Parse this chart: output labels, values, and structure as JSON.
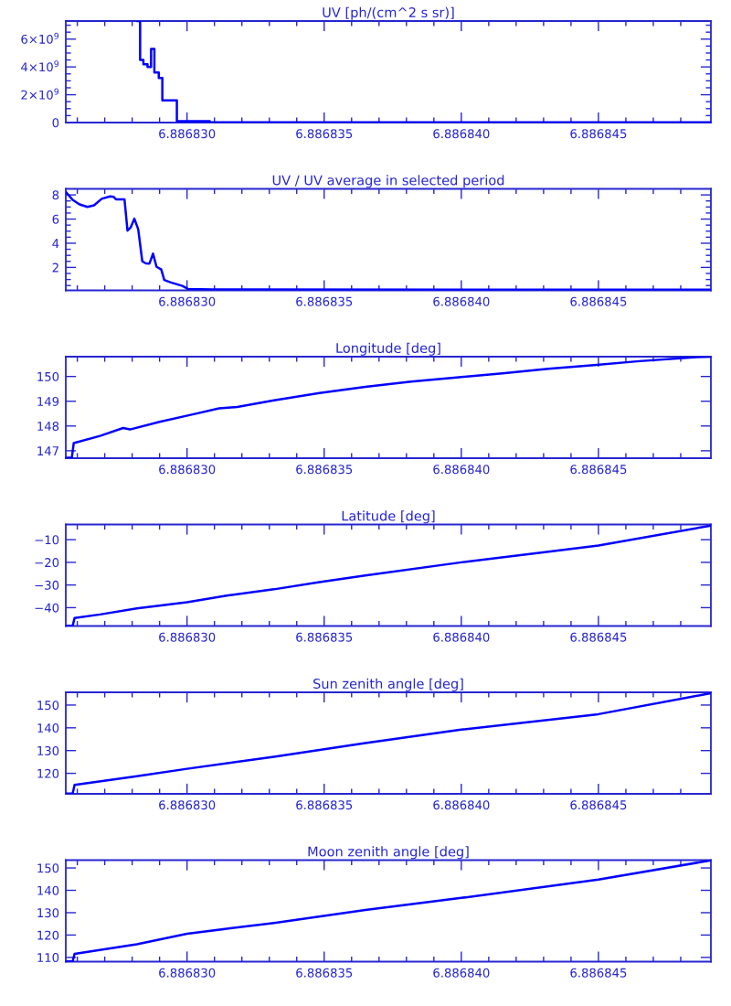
{
  "chart_data": [
    {
      "type": "step",
      "title": "UV [ph/(cm^2 s sr)]",
      "xlim": [
        6.88682558,
        6.8868491
      ],
      "ylim": [
        0,
        7300000000
      ],
      "xticks": [
        {
          "value": 6.886826,
          "label": null
        },
        {
          "value": 6.886827,
          "label": null
        },
        {
          "value": 6.886828,
          "label": null
        },
        {
          "value": 6.886829,
          "label": null
        },
        {
          "value": 6.88683,
          "label": "6.886830"
        },
        {
          "value": 6.886831,
          "label": null
        },
        {
          "value": 6.886832,
          "label": null
        },
        {
          "value": 6.886833,
          "label": null
        },
        {
          "value": 6.886834,
          "label": null
        },
        {
          "value": 6.886835,
          "label": "6.886835"
        },
        {
          "value": 6.886836,
          "label": null
        },
        {
          "value": 6.886837,
          "label": null
        },
        {
          "value": 6.886838,
          "label": null
        },
        {
          "value": 6.886839,
          "label": null
        },
        {
          "value": 6.88684,
          "label": "6.886840"
        },
        {
          "value": 6.886841,
          "label": null
        },
        {
          "value": 6.886842,
          "label": null
        },
        {
          "value": 6.886843,
          "label": null
        },
        {
          "value": 6.886844,
          "label": null
        },
        {
          "value": 6.886845,
          "label": "6.886845"
        },
        {
          "value": 6.886846,
          "label": null
        },
        {
          "value": 6.886847,
          "label": null
        },
        {
          "value": 6.886848,
          "label": null
        }
      ],
      "yticks": [
        0,
        {
          "value": 500000000,
          "label": null
        },
        {
          "value": 1000000000,
          "label": null
        },
        {
          "value": 1500000000,
          "label": null
        },
        {
          "value": 2000000000,
          "label": "2×10$^{9}$"
        },
        {
          "value": 2500000000,
          "label": null
        },
        {
          "value": 3000000000,
          "label": null
        },
        {
          "value": 3500000000,
          "label": null
        },
        {
          "value": 4000000000,
          "label": "4×10$^{9}$"
        },
        {
          "value": 4500000000,
          "label": null
        },
        {
          "value": 5000000000,
          "label": null
        },
        {
          "value": 5500000000,
          "label": null
        },
        {
          "value": 6000000000,
          "label": "6×10$^{9}$"
        },
        {
          "value": 6500000000,
          "label": null
        },
        {
          "value": 7000000000,
          "label": null
        }
      ],
      "series": [
        {
          "color": "#0000ff",
          "x": [
            6.8868282,
            6.88682829,
            6.88682841,
            6.88682856,
            6.88682869,
            6.88682881,
            6.88682897,
            6.8868291,
            6.88682963,
            6.88683083,
            6.8868491
          ],
          "values": [
            7300000000,
            4500000000,
            4200000000,
            4000000000,
            5300000000,
            3600000000,
            3200000000,
            1600000000,
            100000000,
            20000000,
            20000000
          ]
        }
      ]
    },
    {
      "type": "line",
      "title": "UV / UV average in selected period",
      "xlim": [
        6.88682558,
        6.8868491
      ],
      "ylim": [
        0.1,
        8.5
      ],
      "xticks": [
        {
          "value": 6.886826,
          "label": null
        },
        {
          "value": 6.886827,
          "label": null
        },
        {
          "value": 6.886828,
          "label": null
        },
        {
          "value": 6.886829,
          "label": null
        },
        {
          "value": 6.88683,
          "label": "6.886830"
        },
        {
          "value": 6.886831,
          "label": null
        },
        {
          "value": 6.886832,
          "label": null
        },
        {
          "value": 6.886833,
          "label": null
        },
        {
          "value": 6.886834,
          "label": null
        },
        {
          "value": 6.886835,
          "label": "6.886835"
        },
        {
          "value": 6.886836,
          "label": null
        },
        {
          "value": 6.886837,
          "label": null
        },
        {
          "value": 6.886838,
          "label": null
        },
        {
          "value": 6.886839,
          "label": null
        },
        {
          "value": 6.88684,
          "label": "6.886840"
        },
        {
          "value": 6.886841,
          "label": null
        },
        {
          "value": 6.886842,
          "label": null
        },
        {
          "value": 6.886843,
          "label": null
        },
        {
          "value": 6.886844,
          "label": null
        },
        {
          "value": 6.886845,
          "label": "6.886845"
        },
        {
          "value": 6.886846,
          "label": null
        },
        {
          "value": 6.886847,
          "label": null
        },
        {
          "value": 6.886848,
          "label": null
        }
      ],
      "yticks": [
        {
          "value": 0.5,
          "label": null
        },
        {
          "value": 1,
          "label": null
        },
        {
          "value": 1.5,
          "label": null
        },
        2,
        {
          "value": 2.5,
          "label": null
        },
        {
          "value": 3,
          "label": null
        },
        {
          "value": 3.5,
          "label": null
        },
        4,
        {
          "value": 4.5,
          "label": null
        },
        {
          "value": 5,
          "label": null
        },
        {
          "value": 5.5,
          "label": null
        },
        6,
        {
          "value": 6.5,
          "label": null
        },
        {
          "value": 7,
          "label": null
        },
        {
          "value": 7.5,
          "label": null
        },
        8
      ],
      "series": [
        {
          "color": "#0000ff",
          "x": [
            6.88682558,
            6.88682583,
            6.88682608,
            6.88682637,
            6.88682661,
            6.88682689,
            6.88682719,
            6.88682733,
            6.88682741,
            6.88682772,
            6.88682783,
            6.88682794,
            6.88682808,
            6.88682822,
            6.88682837,
            6.8868285,
            6.88682863,
            6.88682876,
            6.88682889,
            6.88682906,
            6.88682917,
            6.88682939,
            6.88682983,
            6.88683003,
            6.88683094,
            6.8868491
          ],
          "values": [
            8.25,
            7.59,
            7.21,
            7.01,
            7.14,
            7.68,
            7.88,
            7.83,
            7.63,
            7.63,
            5.04,
            5.29,
            6.03,
            5.16,
            2.5,
            2.33,
            2.32,
            3.14,
            2.05,
            1.83,
            0.96,
            0.77,
            0.47,
            0.22,
            0.17,
            0.15
          ]
        }
      ]
    },
    {
      "type": "line",
      "title": "Longitude [deg]",
      "xlim": [
        6.88682558,
        6.8868491
      ],
      "ylim": [
        146.7,
        150.8
      ],
      "xticks": [
        {
          "value": 6.886826,
          "label": null
        },
        {
          "value": 6.886827,
          "label": null
        },
        {
          "value": 6.886828,
          "label": null
        },
        {
          "value": 6.886829,
          "label": null
        },
        {
          "value": 6.88683,
          "label": "6.886830"
        },
        {
          "value": 6.886831,
          "label": null
        },
        {
          "value": 6.886832,
          "label": null
        },
        {
          "value": 6.886833,
          "label": null
        },
        {
          "value": 6.886834,
          "label": null
        },
        {
          "value": 6.886835,
          "label": "6.886835"
        },
        {
          "value": 6.886836,
          "label": null
        },
        {
          "value": 6.886837,
          "label": null
        },
        {
          "value": 6.886838,
          "label": null
        },
        {
          "value": 6.886839,
          "label": null
        },
        {
          "value": 6.88684,
          "label": "6.886840"
        },
        {
          "value": 6.886841,
          "label": null
        },
        {
          "value": 6.886842,
          "label": null
        },
        {
          "value": 6.886843,
          "label": null
        },
        {
          "value": 6.886844,
          "label": null
        },
        {
          "value": 6.886845,
          "label": "6.886845"
        },
        {
          "value": 6.886846,
          "label": null
        },
        {
          "value": 6.886847,
          "label": null
        },
        {
          "value": 6.886848,
          "label": null
        }
      ],
      "yticks": [
        147,
        148,
        149,
        150
      ],
      "series": [
        {
          "color": "#0000ff",
          "x": [
            6.88682558,
            6.8868258,
            6.88682587,
            6.88682683,
            6.88682767,
            6.88682792,
            6.886829,
            6.88683017,
            6.88683117,
            6.88683183,
            6.88683317,
            6.88683483,
            6.8868365,
            6.88683817,
            6.88683983,
            6.8868415,
            6.88684317,
            6.88684483,
            6.8868465,
            6.88684857,
            6.8868491
          ],
          "values": [
            146.72,
            146.72,
            147.31,
            147.6,
            147.92,
            147.86,
            148.17,
            148.46,
            148.71,
            148.77,
            149.04,
            149.33,
            149.58,
            149.79,
            149.96,
            150.13,
            150.31,
            150.46,
            150.62,
            150.78,
            150.8
          ]
        }
      ]
    },
    {
      "type": "line",
      "title": "Latitude [deg]",
      "xlim": [
        6.88682558,
        6.8868491
      ],
      "ylim": [
        -48.1,
        -3.3
      ],
      "xticks": [
        {
          "value": 6.886826,
          "label": null
        },
        {
          "value": 6.886827,
          "label": null
        },
        {
          "value": 6.886828,
          "label": null
        },
        {
          "value": 6.886829,
          "label": null
        },
        {
          "value": 6.88683,
          "label": "6.886830"
        },
        {
          "value": 6.886831,
          "label": null
        },
        {
          "value": 6.886832,
          "label": null
        },
        {
          "value": 6.886833,
          "label": null
        },
        {
          "value": 6.886834,
          "label": null
        },
        {
          "value": 6.886835,
          "label": "6.886835"
        },
        {
          "value": 6.886836,
          "label": null
        },
        {
          "value": 6.886837,
          "label": null
        },
        {
          "value": 6.886838,
          "label": null
        },
        {
          "value": 6.886839,
          "label": null
        },
        {
          "value": 6.88684,
          "label": "6.886840"
        },
        {
          "value": 6.886841,
          "label": null
        },
        {
          "value": 6.886842,
          "label": null
        },
        {
          "value": 6.886843,
          "label": null
        },
        {
          "value": 6.886844,
          "label": null
        },
        {
          "value": 6.886845,
          "label": "6.886845"
        },
        {
          "value": 6.886846,
          "label": null
        },
        {
          "value": 6.886847,
          "label": null
        },
        {
          "value": 6.886848,
          "label": null
        }
      ],
      "yticks": [
        {
          "value": -40,
          "label": "−40"
        },
        {
          "value": -30,
          "label": "−30"
        },
        {
          "value": -20,
          "label": "−20"
        },
        {
          "value": -10,
          "label": "−10"
        }
      ],
      "series": [
        {
          "color": "#0000ff",
          "x": [
            6.88682558,
            6.88682583,
            6.8868259,
            6.88682683,
            6.88682817,
            6.88683,
            6.8868315,
            6.88683317,
            6.88683483,
            6.8868365,
            6.88684,
            6.8868425,
            6.886845,
            6.8868491
          ],
          "values": [
            -48.0,
            -48.0,
            -44.6,
            -43.0,
            -40.3,
            -37.6,
            -34.6,
            -31.9,
            -28.7,
            -25.8,
            -20.0,
            -16.3,
            -12.6,
            -3.8
          ]
        }
      ]
    },
    {
      "type": "line",
      "title": "Sun zenith angle [deg]",
      "xlim": [
        6.88682558,
        6.8868491
      ],
      "ylim": [
        111.0,
        155.6
      ],
      "xticks": [
        {
          "value": 6.886826,
          "label": null
        },
        {
          "value": 6.886827,
          "label": null
        },
        {
          "value": 6.886828,
          "label": null
        },
        {
          "value": 6.886829,
          "label": null
        },
        {
          "value": 6.88683,
          "label": "6.886830"
        },
        {
          "value": 6.886831,
          "label": null
        },
        {
          "value": 6.886832,
          "label": null
        },
        {
          "value": 6.886833,
          "label": null
        },
        {
          "value": 6.886834,
          "label": null
        },
        {
          "value": 6.886835,
          "label": "6.886835"
        },
        {
          "value": 6.886836,
          "label": null
        },
        {
          "value": 6.886837,
          "label": null
        },
        {
          "value": 6.886838,
          "label": null
        },
        {
          "value": 6.886839,
          "label": null
        },
        {
          "value": 6.88684,
          "label": "6.886840"
        },
        {
          "value": 6.886841,
          "label": null
        },
        {
          "value": 6.886842,
          "label": null
        },
        {
          "value": 6.886843,
          "label": null
        },
        {
          "value": 6.886844,
          "label": null
        },
        {
          "value": 6.886845,
          "label": "6.886845"
        },
        {
          "value": 6.886846,
          "label": null
        },
        {
          "value": 6.886847,
          "label": null
        },
        {
          "value": 6.886848,
          "label": null
        }
      ],
      "yticks": [
        120,
        130,
        140,
        150
      ],
      "series": [
        {
          "color": "#0000ff",
          "x": [
            6.88682558,
            6.88682583,
            6.8868259,
            6.88682817,
            6.88683,
            6.88683317,
            6.8868365,
            6.88684,
            6.886845,
            6.8868491
          ],
          "values": [
            111.1,
            111.1,
            114.9,
            118.7,
            122.0,
            127.3,
            133.3,
            139.2,
            146.0,
            155.2
          ]
        }
      ]
    },
    {
      "type": "line",
      "title": "Moon zenith angle [deg]",
      "xlim": [
        6.88682558,
        6.8868491
      ],
      "ylim": [
        108.1,
        153.5
      ],
      "xticks": [
        {
          "value": 6.886826,
          "label": null
        },
        {
          "value": 6.886827,
          "label": null
        },
        {
          "value": 6.886828,
          "label": null
        },
        {
          "value": 6.886829,
          "label": null
        },
        {
          "value": 6.88683,
          "label": "6.886830"
        },
        {
          "value": 6.886831,
          "label": null
        },
        {
          "value": 6.886832,
          "label": null
        },
        {
          "value": 6.886833,
          "label": null
        },
        {
          "value": 6.886834,
          "label": null
        },
        {
          "value": 6.886835,
          "label": "6.886835"
        },
        {
          "value": 6.886836,
          "label": null
        },
        {
          "value": 6.886837,
          "label": null
        },
        {
          "value": 6.886838,
          "label": null
        },
        {
          "value": 6.886839,
          "label": null
        },
        {
          "value": 6.88684,
          "label": "6.886840"
        },
        {
          "value": 6.886841,
          "label": null
        },
        {
          "value": 6.886842,
          "label": null
        },
        {
          "value": 6.886843,
          "label": null
        },
        {
          "value": 6.886844,
          "label": null
        },
        {
          "value": 6.886845,
          "label": "6.886845"
        },
        {
          "value": 6.886846,
          "label": null
        },
        {
          "value": 6.886847,
          "label": null
        },
        {
          "value": 6.886848,
          "label": null
        }
      ],
      "yticks": [
        110,
        120,
        130,
        140,
        150
      ],
      "series": [
        {
          "color": "#0000ff",
          "x": [
            6.88682558,
            6.88682583,
            6.8868259,
            6.88682817,
            6.88683,
            6.88683317,
            6.8868365,
            6.88684,
            6.886845,
            6.8868491
          ],
          "values": [
            108.2,
            108.2,
            111.6,
            115.9,
            120.6,
            125.4,
            131.2,
            136.6,
            144.8,
            153.4
          ]
        }
      ]
    }
  ]
}
